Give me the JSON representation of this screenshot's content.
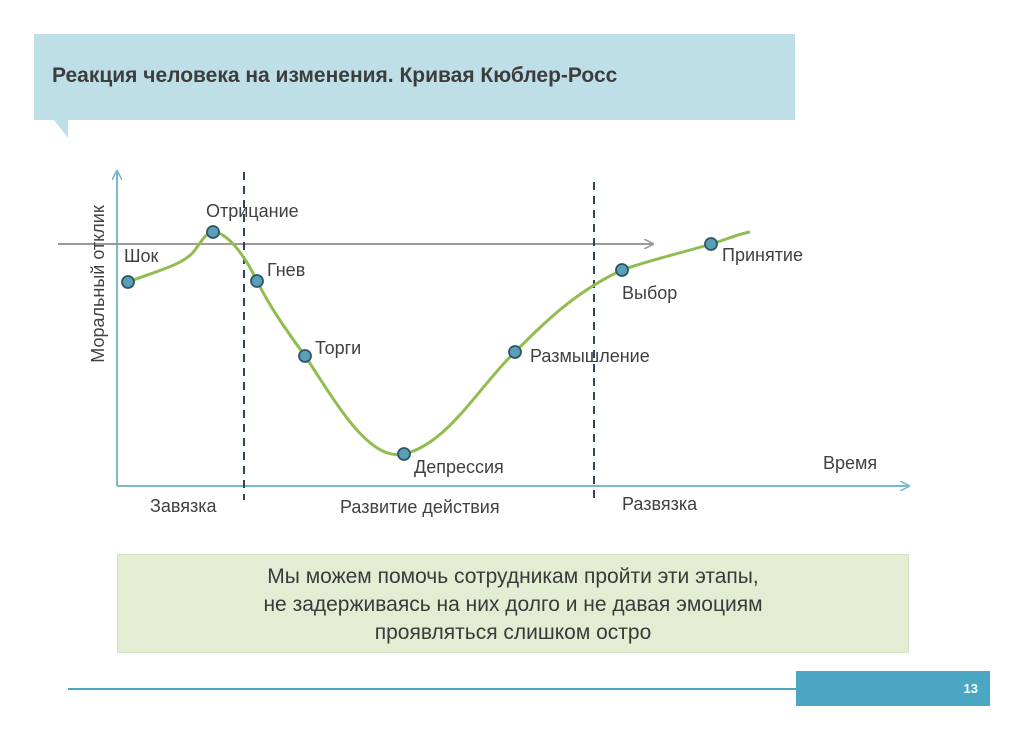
{
  "title": "Реакция человека на изменения. Кривая Кюблер-Росс",
  "axes": {
    "y_label": "Моральный отклик",
    "x_label": "Время"
  },
  "stages": [
    {
      "label": "Шок"
    },
    {
      "label": "Отрицание"
    },
    {
      "label": "Гнев"
    },
    {
      "label": "Торги"
    },
    {
      "label": "Депрессия"
    },
    {
      "label": "Размышление"
    },
    {
      "label": "Выбор"
    },
    {
      "label": "Принятие"
    }
  ],
  "phases": [
    "Завязка",
    "Развитие действия",
    "Развязка"
  ],
  "note": {
    "line1": "Мы можем помочь сотрудникам пройти эти этапы,",
    "line2": "не задерживаясь на них долго и не давая эмоциям",
    "line3": "проявляться слишком остро"
  },
  "page_number": "13",
  "colors": {
    "title_bg": "#bfdfe8",
    "curve": "#8fbd4f",
    "marker": "#5a9fb8",
    "axis": "#7ab8cc",
    "note_bg": "#e3edd3",
    "accent": "#4aa6c2"
  }
}
